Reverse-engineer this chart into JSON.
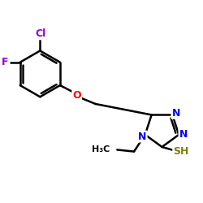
{
  "bg_color": "#ffffff",
  "bond_color": "#000000",
  "bond_width": 1.8,
  "dbo": 0.055,
  "atom_colors": {
    "Cl": "#9400D3",
    "F": "#9400D3",
    "O": "#FF0000",
    "N": "#0000FF",
    "S": "#808000",
    "C": "#000000",
    "H": "#000000"
  },
  "font_size": 9
}
